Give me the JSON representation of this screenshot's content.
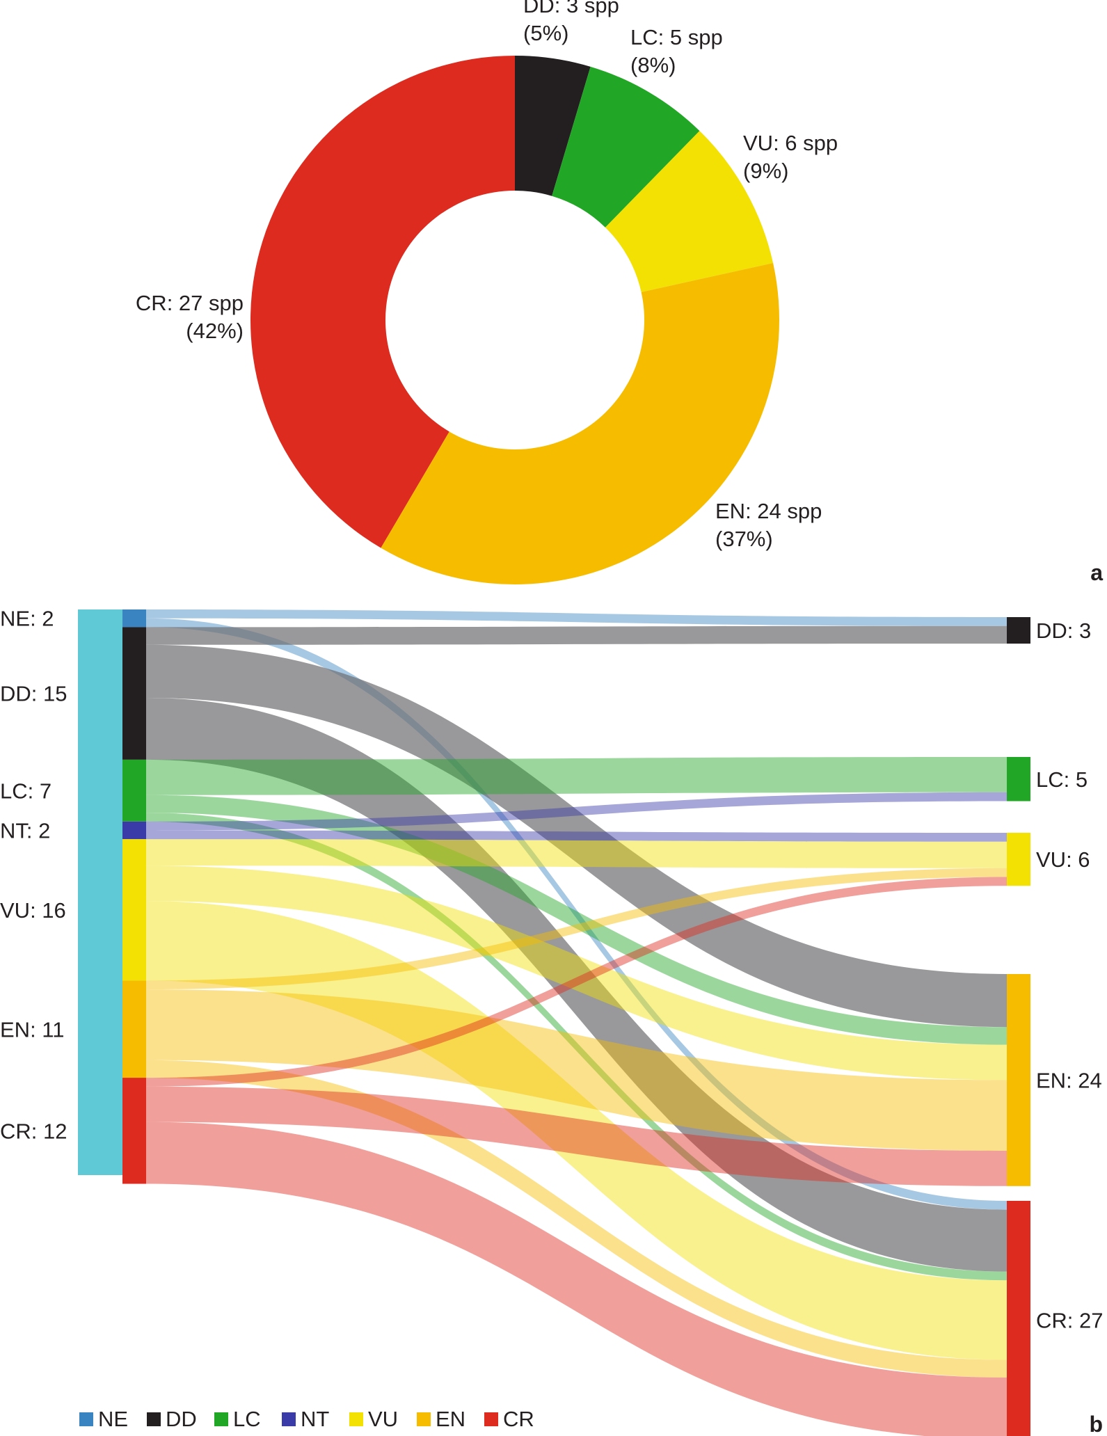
{
  "colors": {
    "NE": "#3b84c2",
    "DD": "#231f20",
    "LC": "#22a626",
    "NT": "#3a3aa8",
    "VU": "#f2e102",
    "EN": "#f6bd00",
    "CR": "#dd2b1f",
    "total_bar": "#5fcad6"
  },
  "chart_data": [
    {
      "type": "pie",
      "panel_label": "a",
      "title": "",
      "slices": [
        {
          "category": "DD",
          "count": 3,
          "percent": 5,
          "label_line1": "DD: 3 spp",
          "label_line2": "(5%)"
        },
        {
          "category": "LC",
          "count": 5,
          "percent": 8,
          "label_line1": "LC: 5 spp",
          "label_line2": "(8%)"
        },
        {
          "category": "VU",
          "count": 6,
          "percent": 9,
          "label_line1": "VU: 6 spp",
          "label_line2": "(9%)"
        },
        {
          "category": "EN",
          "count": 24,
          "percent": 37,
          "label_line1": "EN: 24 spp",
          "label_line2": "(37%)"
        },
        {
          "category": "CR",
          "count": 27,
          "percent": 42,
          "label_line1": "CR: 27 spp",
          "label_line2": "(42%)"
        }
      ]
    },
    {
      "type": "sankey",
      "panel_label": "b",
      "left_nodes": [
        {
          "category": "NE",
          "value": 2,
          "label": "NE: 2"
        },
        {
          "category": "DD",
          "value": 15,
          "label": "DD: 15"
        },
        {
          "category": "LC",
          "value": 7,
          "label": "LC: 7"
        },
        {
          "category": "NT",
          "value": 2,
          "label": "NT: 2"
        },
        {
          "category": "VU",
          "value": 16,
          "label": "VU: 16"
        },
        {
          "category": "EN",
          "value": 11,
          "label": "EN: 11"
        },
        {
          "category": "CR",
          "value": 12,
          "label": "CR: 12"
        }
      ],
      "right_nodes": [
        {
          "category": "DD",
          "value": 3,
          "label": "DD: 3"
        },
        {
          "category": "LC",
          "value": 5,
          "label": "LC: 5"
        },
        {
          "category": "VU",
          "value": 6,
          "label": "VU: 6"
        },
        {
          "category": "EN",
          "value": 24,
          "label": "EN: 24"
        },
        {
          "category": "CR",
          "value": 27,
          "label": "CR: 27"
        }
      ],
      "flows": [
        {
          "from": "NE",
          "to": "DD",
          "value": 1
        },
        {
          "from": "NE",
          "to": "CR",
          "value": 1
        },
        {
          "from": "DD",
          "to": "DD",
          "value": 2
        },
        {
          "from": "DD",
          "to": "EN",
          "value": 6
        },
        {
          "from": "DD",
          "to": "CR",
          "value": 7
        },
        {
          "from": "LC",
          "to": "LC",
          "value": 4
        },
        {
          "from": "LC",
          "to": "EN",
          "value": 2
        },
        {
          "from": "LC",
          "to": "CR",
          "value": 1
        },
        {
          "from": "NT",
          "to": "LC",
          "value": 1
        },
        {
          "from": "NT",
          "to": "VU",
          "value": 1
        },
        {
          "from": "VU",
          "to": "VU",
          "value": 3
        },
        {
          "from": "VU",
          "to": "EN",
          "value": 4
        },
        {
          "from": "VU",
          "to": "CR",
          "value": 9
        },
        {
          "from": "EN",
          "to": "VU",
          "value": 1
        },
        {
          "from": "EN",
          "to": "EN",
          "value": 8
        },
        {
          "from": "EN",
          "to": "CR",
          "value": 2
        },
        {
          "from": "CR",
          "to": "VU",
          "value": 1
        },
        {
          "from": "CR",
          "to": "EN",
          "value": 4
        },
        {
          "from": "CR",
          "to": "CR",
          "value": 7
        }
      ]
    }
  ],
  "legend": [
    {
      "category": "NE",
      "label": "NE"
    },
    {
      "category": "DD",
      "label": "DD"
    },
    {
      "category": "LC",
      "label": "LC"
    },
    {
      "category": "NT",
      "label": "NT"
    },
    {
      "category": "VU",
      "label": "VU"
    },
    {
      "category": "EN",
      "label": "EN"
    },
    {
      "category": "CR",
      "label": "CR"
    }
  ]
}
